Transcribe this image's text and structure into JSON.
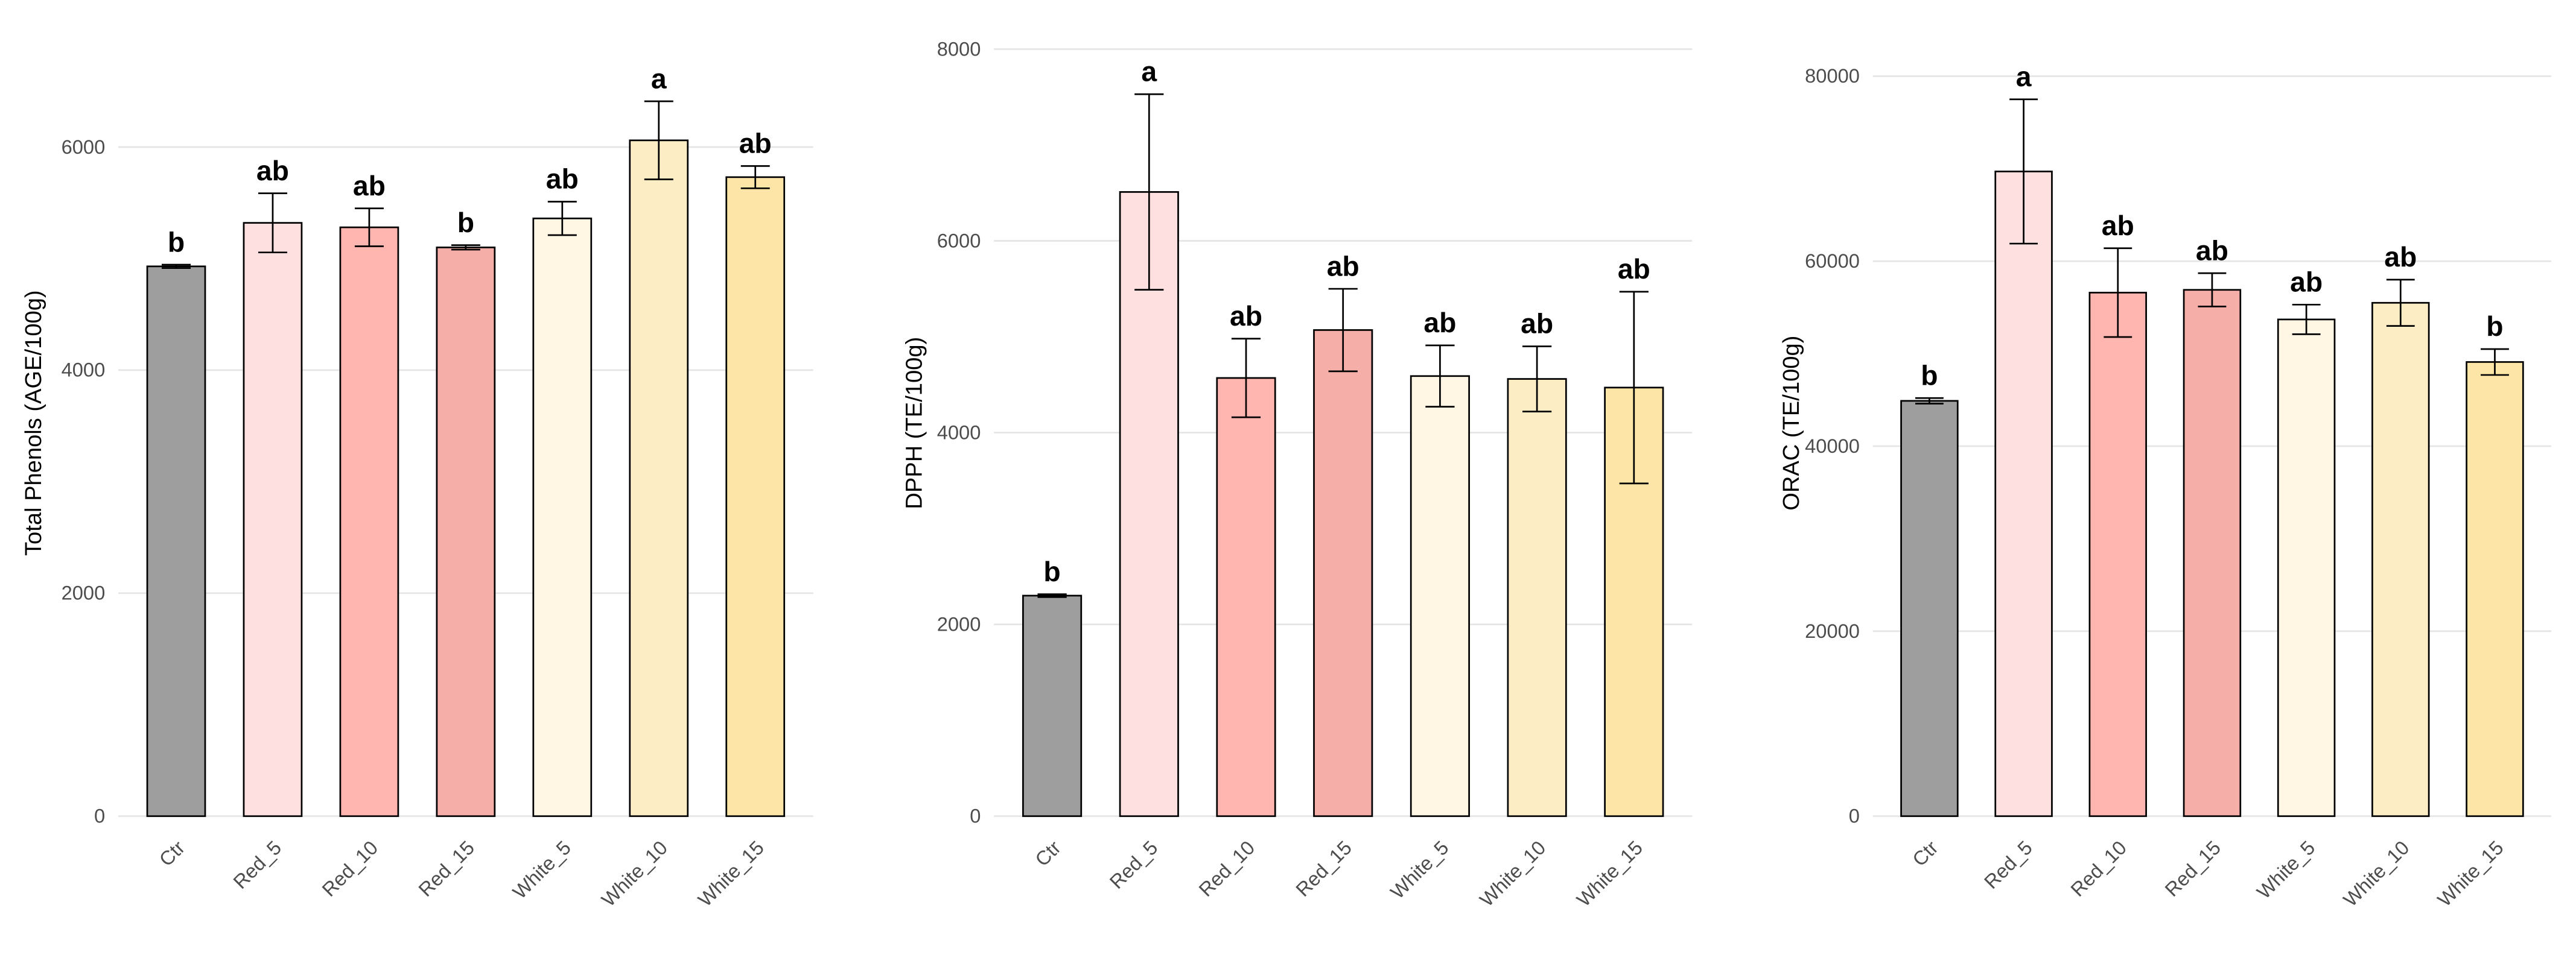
{
  "chart_data": [
    {
      "type": "bar",
      "y_label": "Total Phenols (AGE/100g)",
      "categories": [
        "Ctr",
        "Red_5",
        "Red_10",
        "Red_15",
        "White_5",
        "White_10",
        "White_15"
      ],
      "values": [
        4930,
        5320,
        5280,
        5100,
        5360,
        6060,
        5730
      ],
      "errors": [
        15,
        265,
        170,
        20,
        150,
        350,
        100
      ],
      "letters": [
        "b",
        "ab",
        "ab",
        "b",
        "ab",
        "a",
        "ab"
      ],
      "colors": [
        "#9e9e9e",
        "#ffe0e0",
        "#ffb6b0",
        "#f5aea8",
        "#fff6e4",
        "#fdedc5",
        "#fde5a8"
      ],
      "ylim": [
        0,
        7050
      ],
      "yticks": [
        0,
        2000,
        4000,
        6000
      ],
      "grid": true
    },
    {
      "type": "bar",
      "y_label": "DPPH (TE/100g)",
      "categories": [
        "Ctr",
        "Red_5",
        "Red_10",
        "Red_15",
        "White_5",
        "White_10",
        "White_15"
      ],
      "values": [
        2300,
        6510,
        4570,
        5070,
        4590,
        4560,
        4470
      ],
      "errors": [
        15,
        1020,
        410,
        430,
        320,
        340,
        1000
      ],
      "letters": [
        "b",
        "a",
        "ab",
        "ab",
        "ab",
        "ab",
        "ab"
      ],
      "colors": [
        "#9e9e9e",
        "#ffe0e0",
        "#ffb6b0",
        "#f5aea8",
        "#fff6e4",
        "#fdedc5",
        "#fde5a8"
      ],
      "ylim": [
        0,
        8200
      ],
      "yticks": [
        0,
        2000,
        4000,
        6000,
        8000
      ],
      "grid": true
    },
    {
      "type": "bar",
      "y_label": "ORAC (TE/100g)",
      "categories": [
        "Ctr",
        "Red_5",
        "Red_10",
        "Red_15",
        "White_5",
        "White_10",
        "White_15"
      ],
      "values": [
        44900,
        69700,
        56600,
        56900,
        53700,
        55500,
        49100
      ],
      "errors": [
        300,
        7800,
        4800,
        1800,
        1600,
        2500,
        1400
      ],
      "letters": [
        "b",
        "a",
        "ab",
        "ab",
        "ab",
        "ab",
        "b"
      ],
      "colors": [
        "#9e9e9e",
        "#ffe0e0",
        "#ffb6b0",
        "#f5aea8",
        "#fff6e4",
        "#fdedc5",
        "#fde5a8"
      ],
      "ylim": [
        0,
        85000
      ],
      "yticks": [
        0,
        20000,
        40000,
        60000,
        80000
      ],
      "grid": true
    }
  ]
}
